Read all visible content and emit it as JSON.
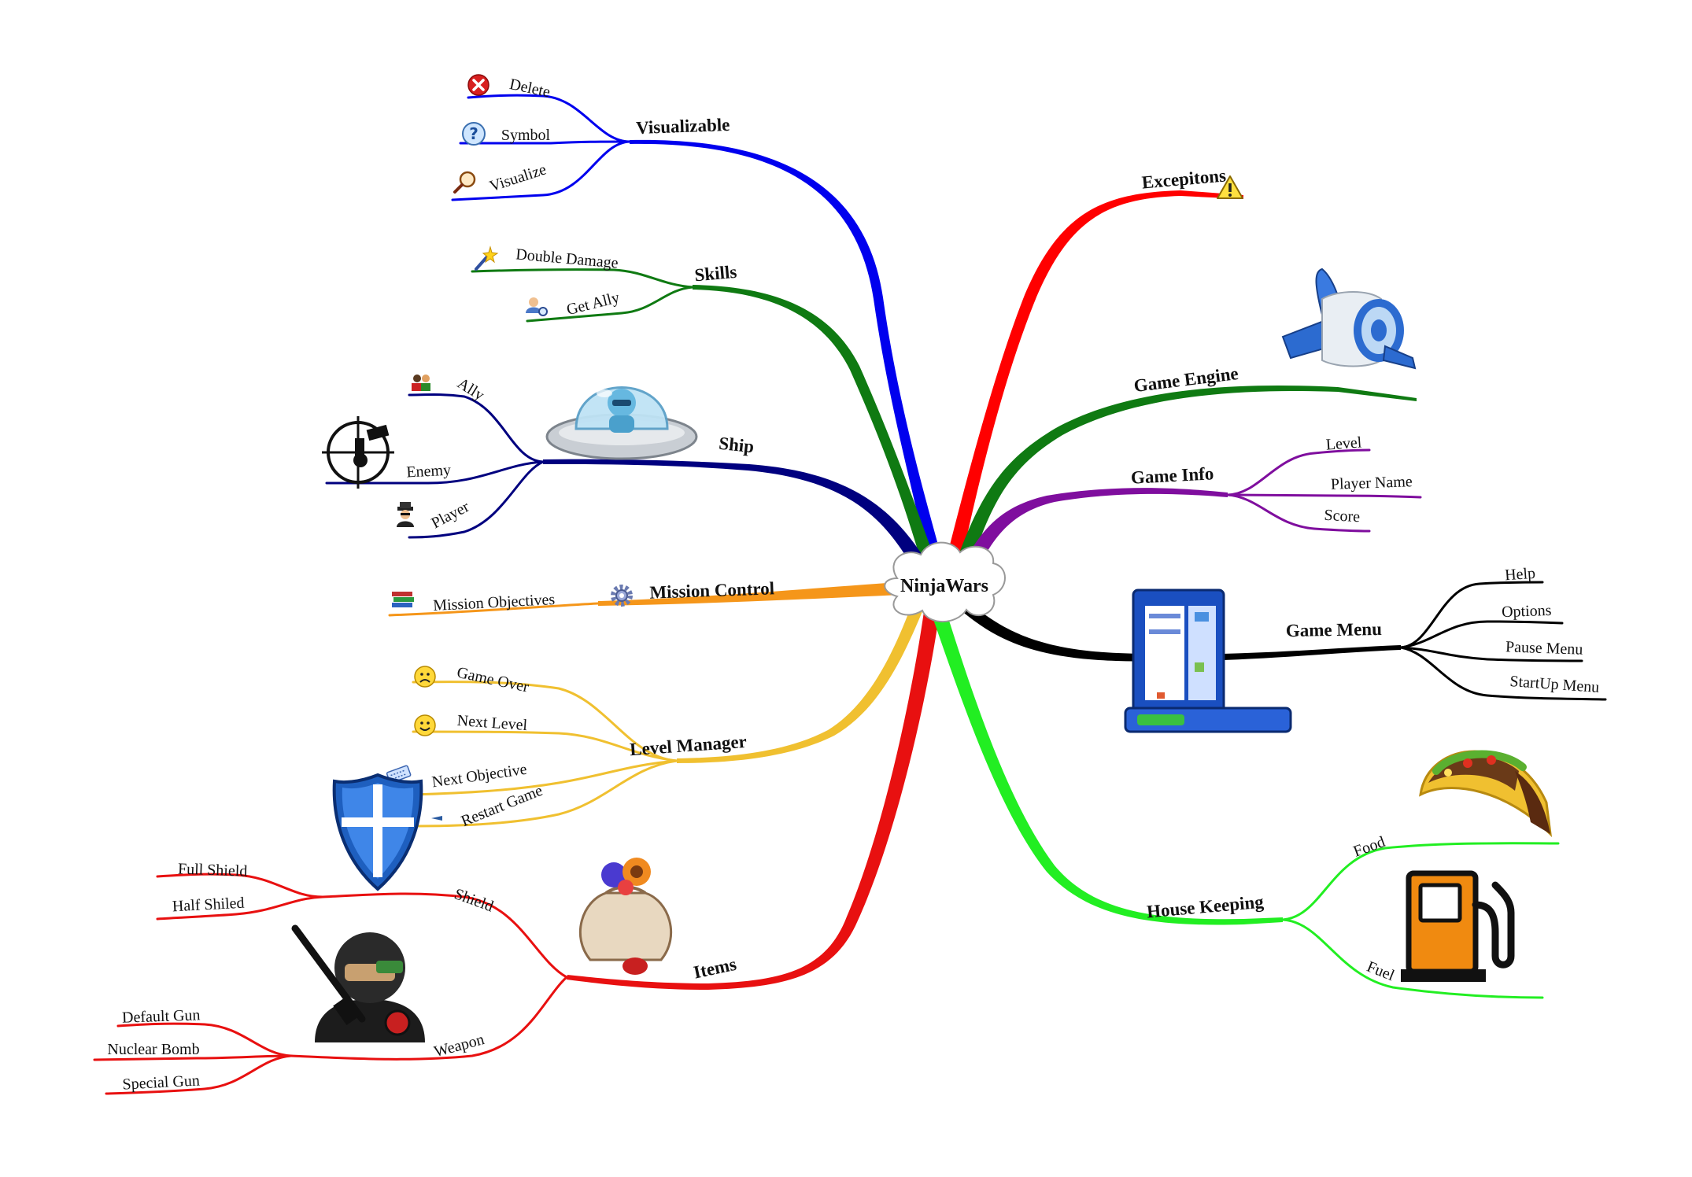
{
  "center": {
    "label": "NinjaWars"
  },
  "branches": [
    {
      "id": "visualizable",
      "label": "Visualizable",
      "color": "#0000ee",
      "children": [
        {
          "label": "Delete",
          "icon": "delete-icon"
        },
        {
          "label": "Symbol",
          "icon": "help-icon"
        },
        {
          "label": "Visualize",
          "icon": "magnifier-icon"
        }
      ]
    },
    {
      "id": "skills",
      "label": "Skills",
      "color": "#0f7a12",
      "children": [
        {
          "label": "Double Damage",
          "icon": "magic-wand-icon"
        },
        {
          "label": "Get Ally",
          "icon": "user-search-icon"
        }
      ]
    },
    {
      "id": "ship",
      "label": "Ship",
      "color": "#00007f",
      "icon": "ufo-icon",
      "children": [
        {
          "label": "Ally",
          "icon": "group-icon"
        },
        {
          "label": "Enemy",
          "icon": "crosshair-target-icon"
        },
        {
          "label": "Player",
          "icon": "spy-icon"
        }
      ]
    },
    {
      "id": "mission",
      "label": "Mission Control",
      "color": "#f5961a",
      "icon": "gear-icon",
      "children": [
        {
          "label": "Mission Objectives",
          "icon": "books-icon"
        }
      ]
    },
    {
      "id": "level",
      "label": "Level Manager",
      "color": "#f0c030",
      "children": [
        {
          "label": "Game Over",
          "icon": "sad-face-icon"
        },
        {
          "label": "Next Level",
          "icon": "smiley-icon"
        },
        {
          "label": "Next Objective",
          "icon": "keyboard-icon"
        },
        {
          "label": "Restart Game",
          "icon": "arrow-icon"
        }
      ]
    },
    {
      "id": "items",
      "label": "Items",
      "color": "#e81010",
      "icon": "loot-bag-icon",
      "children": [
        {
          "label": "Shield",
          "icon": "shield-icon",
          "children": [
            {
              "label": "Full Shield"
            },
            {
              "label": "Half Shiled"
            }
          ]
        },
        {
          "label": "Weapon",
          "icon": "soldier-icon",
          "children": [
            {
              "label": "Default Gun"
            },
            {
              "label": "Nuclear Bomb"
            },
            {
              "label": "Special Gun"
            }
          ]
        }
      ]
    },
    {
      "id": "exceptions",
      "label": "Excepitons",
      "color": "#ff0000",
      "icon": "warning-icon",
      "children": []
    },
    {
      "id": "engine",
      "label": "Game Engine",
      "color": "#0f7a12",
      "icon": "app-engine-icon",
      "children": []
    },
    {
      "id": "info",
      "label": "Game Info",
      "color": "#7f0e9e",
      "children": [
        {
          "label": "Level"
        },
        {
          "label": "Player Name"
        },
        {
          "label": "Score"
        }
      ]
    },
    {
      "id": "menu",
      "label": "Game Menu",
      "color": "#000000",
      "icon": "start-menu-icon",
      "children": [
        {
          "label": "Help"
        },
        {
          "label": "Options"
        },
        {
          "label": "Pause Menu"
        },
        {
          "label": "StartUp Menu"
        }
      ]
    },
    {
      "id": "house",
      "label": "House Keeping",
      "color": "#22ee22",
      "children": [
        {
          "label": "Food",
          "icon": "taco-icon"
        },
        {
          "label": "Fuel",
          "icon": "fuel-pump-icon"
        }
      ]
    }
  ]
}
